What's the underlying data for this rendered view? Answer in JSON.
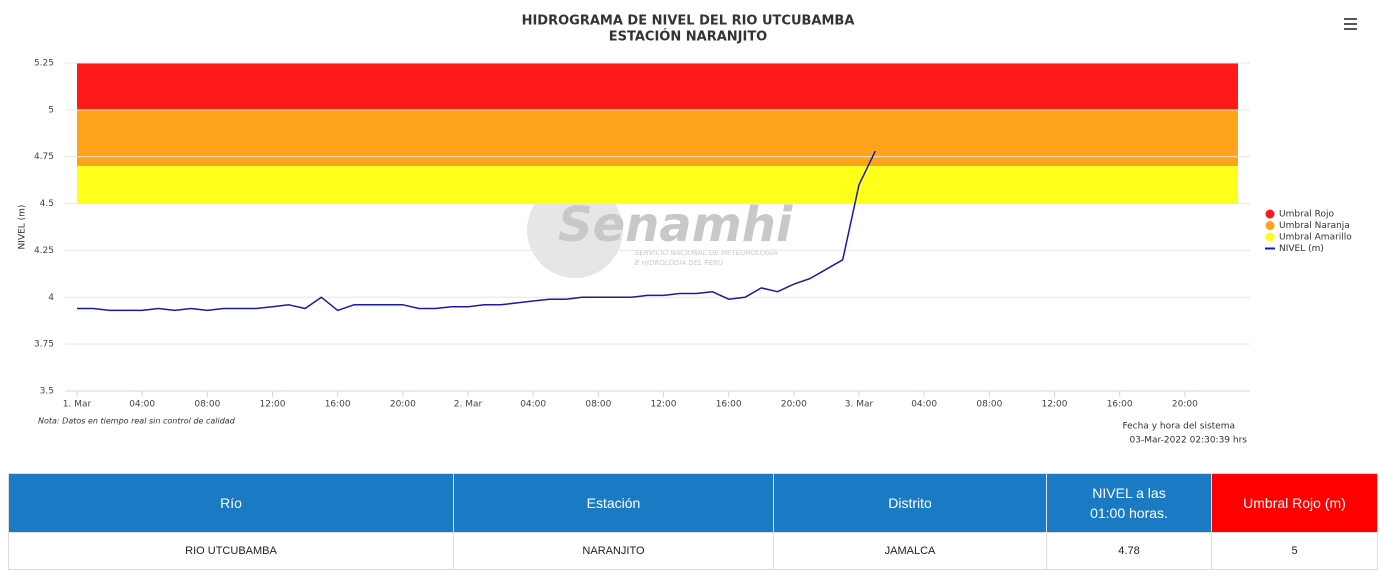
{
  "chart_data": {
    "type": "line",
    "title": [
      "HIDROGRAMA DE NIVEL DEL RIO UTCUBAMBA",
      "ESTACIÓN NARANJITO"
    ],
    "y_label": "NIVEL (m)",
    "ylim": [
      3.5,
      5.25
    ],
    "yticks": [
      3.5,
      3.75,
      4,
      4.25,
      4.5,
      4.75,
      5,
      5.25
    ],
    "xlim": [
      0,
      72
    ],
    "xticks": [
      {
        "value": 0,
        "label": "1. Mar"
      },
      {
        "value": 4,
        "label": "04:00"
      },
      {
        "value": 8,
        "label": "08:00"
      },
      {
        "value": 12,
        "label": "12:00"
      },
      {
        "value": 16,
        "label": "16:00"
      },
      {
        "value": 20,
        "label": "20:00"
      },
      {
        "value": 24,
        "label": "2. Mar"
      },
      {
        "value": 28,
        "label": "04:00"
      },
      {
        "value": 32,
        "label": "08:00"
      },
      {
        "value": 36,
        "label": "12:00"
      },
      {
        "value": 40,
        "label": "16:00"
      },
      {
        "value": 44,
        "label": "20:00"
      },
      {
        "value": 48,
        "label": "3. Mar"
      },
      {
        "value": 52,
        "label": "04:00"
      },
      {
        "value": 56,
        "label": "08:00"
      },
      {
        "value": 60,
        "label": "12:00"
      },
      {
        "value": 64,
        "label": "16:00"
      },
      {
        "value": 68,
        "label": "20:00"
      }
    ],
    "grid": true,
    "legend": "right",
    "bands": [
      {
        "name": "Umbral Rojo",
        "color": "#ff1a1a",
        "from": 5,
        "to": 5.25
      },
      {
        "name": "Umbral Naranja",
        "color": "#ffa31a",
        "from": 4.7,
        "to": 5
      },
      {
        "name": "Umbral Amarillo",
        "color": "#ffff1a",
        "from": 4.5,
        "to": 4.7
      }
    ],
    "series": [
      {
        "name": "NIVEL (m)",
        "color": "#1a1aa6",
        "x": [
          0,
          1,
          2,
          3,
          4,
          5,
          6,
          7,
          8,
          9,
          10,
          11,
          12,
          13,
          14,
          15,
          16,
          17,
          18,
          19,
          20,
          21,
          22,
          23,
          24,
          25,
          26,
          27,
          28,
          29,
          30,
          31,
          32,
          33,
          34,
          35,
          36,
          37,
          38,
          39,
          40,
          41,
          42,
          43,
          44,
          45,
          46,
          47,
          48,
          49
        ],
        "values": [
          3.94,
          3.94,
          3.93,
          3.93,
          3.93,
          3.94,
          3.93,
          3.94,
          3.93,
          3.94,
          3.94,
          3.94,
          3.95,
          3.96,
          3.94,
          4.0,
          3.93,
          3.96,
          3.96,
          3.96,
          3.96,
          3.94,
          3.94,
          3.95,
          3.95,
          3.96,
          3.96,
          3.97,
          3.98,
          3.99,
          3.99,
          4.0,
          4.0,
          4.0,
          4.0,
          4.01,
          4.01,
          4.02,
          4.02,
          4.03,
          3.99,
          4.0,
          4.05,
          4.03,
          4.07,
          4.1,
          4.15,
          4.2,
          4.6,
          4.78
        ]
      }
    ],
    "watermark": {
      "brand": "Senamhi",
      "line1": "SERVICIO NACIONAL DE METEOROLOGÍA",
      "line2": "E HIDROLOGÍA DEL PERÚ"
    }
  },
  "note": "Nota: Datos en tiempo real sin control de calidad",
  "system_time": {
    "label": "Fecha y hora del sistema",
    "value": "03-Mar-2022 02:30:39 hrs"
  },
  "table": {
    "header": [
      "Río",
      "Estación",
      "Distrito",
      [
        "NIVEL a las",
        "01:00 horas."
      ],
      "Umbral Rojo (m)"
    ],
    "rows": [
      [
        "RIO UTCUBAMBA",
        "NARANJITO",
        "JAMALCA",
        "4.78",
        "5"
      ]
    ]
  }
}
